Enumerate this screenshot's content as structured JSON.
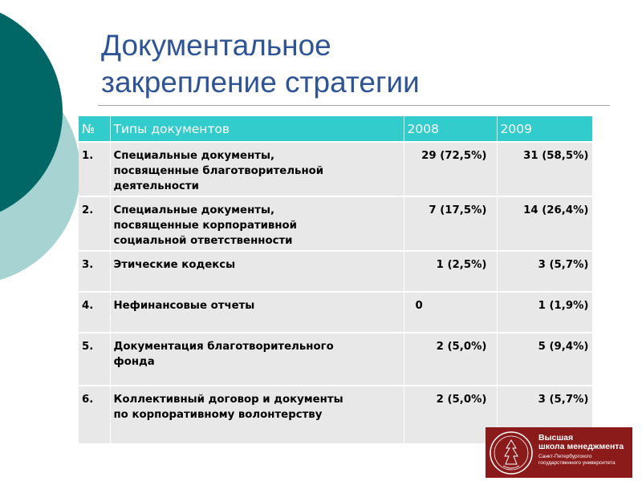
{
  "slide": {
    "title_line1": "Документальное",
    "title_line2": "закрепление стратегии"
  },
  "colors": {
    "header_bg": "#33cccc",
    "row_bg": "#e8e8e8",
    "title": "#2f5496",
    "circle_dark": "#006666",
    "circle_light": "#a7d3d3",
    "logo_bg": "#8b1a1a"
  },
  "table": {
    "headers": [
      "№",
      "Типы документов",
      "2008",
      "2009"
    ],
    "rows": [
      {
        "num": "1.",
        "type_lines": [
          "Специальные документы,",
          "посвященные благотворительной",
          "деятельности"
        ],
        "y2008": "29 (72,5%)",
        "y2009": "31 (58,5%)"
      },
      {
        "num": "2.",
        "type_lines": [
          "Специальные документы,",
          "посвященные корпоративной",
          "социальной ответственности"
        ],
        "y2008": "7 (17,5%)",
        "y2009": "14 (26,4%)"
      },
      {
        "num": "3.",
        "type_lines": [
          "Этические кодексы"
        ],
        "y2008": "1 (2,5%)",
        "y2009": "3 (5,7%)"
      },
      {
        "num": "4.",
        "type_lines": [
          "Нефинансовые отчеты"
        ],
        "y2008": "0",
        "y2009": "1 (1,9%)"
      },
      {
        "num": "5.",
        "type_lines": [
          "Документация благотворительного",
          "фонда"
        ],
        "y2008": "2 (5,0%)",
        "y2009": "5 (9,4%)"
      },
      {
        "num": "6.",
        "type_lines": [
          "Коллективный договор и документы",
          "по корпоративному волонтерству"
        ],
        "y2008": "2 (5,0%)",
        "y2009": "3 (5,7%)"
      }
    ]
  },
  "logo": {
    "line1": "Высшая",
    "line2": "школа менеджмента",
    "line3": "Санкт-Петербургского",
    "line4": "государственного университета"
  }
}
